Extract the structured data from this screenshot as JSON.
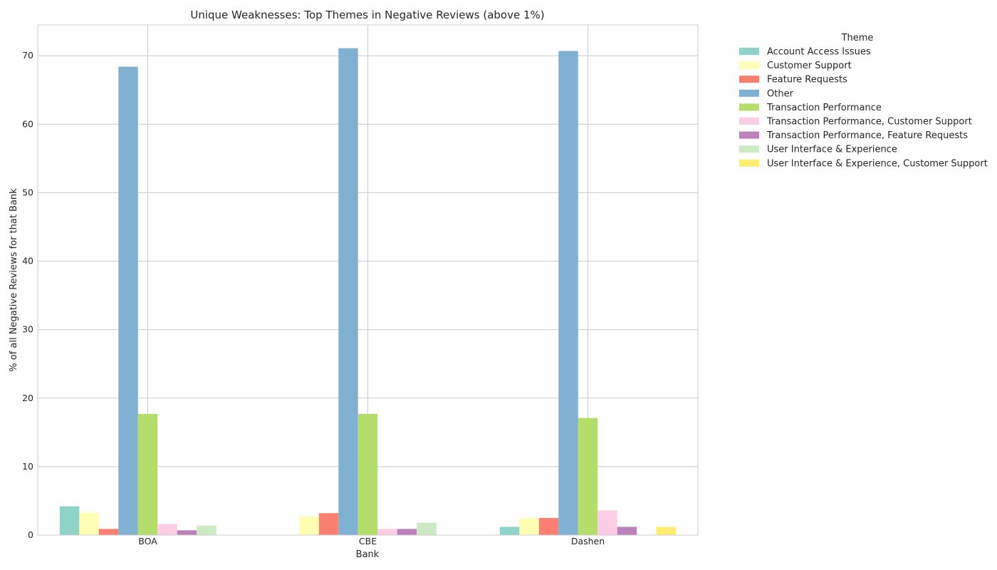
{
  "chart_data": {
    "type": "bar",
    "title": "Unique Weaknesses: Top Themes in Negative Reviews (above 1%)",
    "xlabel": "Bank",
    "ylabel": "% of all Negative Reviews for that Bank",
    "categories": [
      "BOA",
      "CBE",
      "Dashen"
    ],
    "ylim": [
      0,
      74.5
    ],
    "yticks": [
      0,
      10,
      20,
      30,
      40,
      50,
      60,
      70
    ],
    "grid": true,
    "legend": {
      "title": "Theme",
      "placement": "outside-right"
    },
    "series": [
      {
        "name": "Account Access Issues",
        "color": "#8dd3c7",
        "values": [
          4.2,
          null,
          1.2
        ]
      },
      {
        "name": "Customer Support",
        "color": "#ffffb3",
        "values": [
          3.3,
          2.7,
          2.5
        ]
      },
      {
        "name": "Feature Requests",
        "color": "#fb8072",
        "values": [
          0.9,
          3.2,
          2.5
        ]
      },
      {
        "name": "Other",
        "color": "#80b1d3",
        "values": [
          68.4,
          71.1,
          70.7
        ]
      },
      {
        "name": "Transaction Performance",
        "color": "#b3de69",
        "values": [
          17.7,
          17.7,
          17.1
        ]
      },
      {
        "name": "Transaction Performance, Customer Support",
        "color": "#fccde5",
        "values": [
          1.6,
          0.9,
          3.6
        ]
      },
      {
        "name": "Transaction Performance, Feature Requests",
        "color": "#bc80bd",
        "values": [
          0.7,
          0.9,
          1.2
        ]
      },
      {
        "name": "User Interface & Experience",
        "color": "#ccebc5",
        "values": [
          1.4,
          1.8,
          null
        ]
      },
      {
        "name": "User Interface & Experience, Customer Support",
        "color": "#ffed6f",
        "values": [
          null,
          null,
          1.2
        ]
      }
    ]
  }
}
